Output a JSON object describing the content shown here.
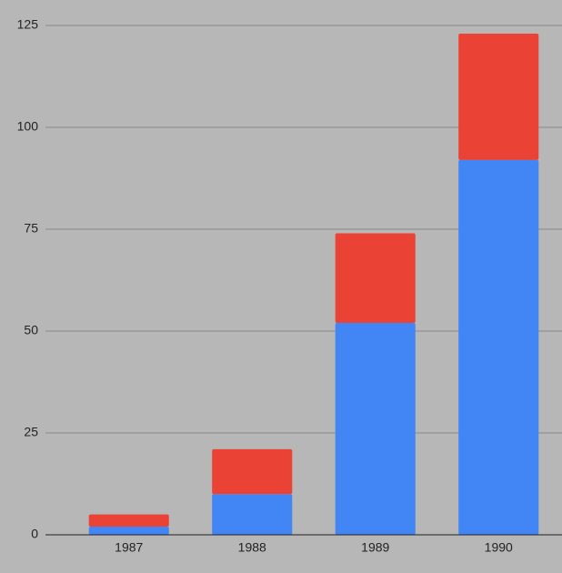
{
  "chart_data": {
    "type": "stacked_bar",
    "categories": [
      "1987",
      "1988",
      "1989",
      "1990"
    ],
    "series": [
      {
        "color": "#4285f4",
        "values": [
          2,
          10,
          52,
          92
        ]
      },
      {
        "color": "#ea4335",
        "values": [
          3,
          11,
          22,
          31
        ]
      }
    ],
    "ylim": [
      0,
      125
    ],
    "yticks": [
      0,
      25,
      50,
      75,
      100,
      125
    ],
    "grid": true
  }
}
